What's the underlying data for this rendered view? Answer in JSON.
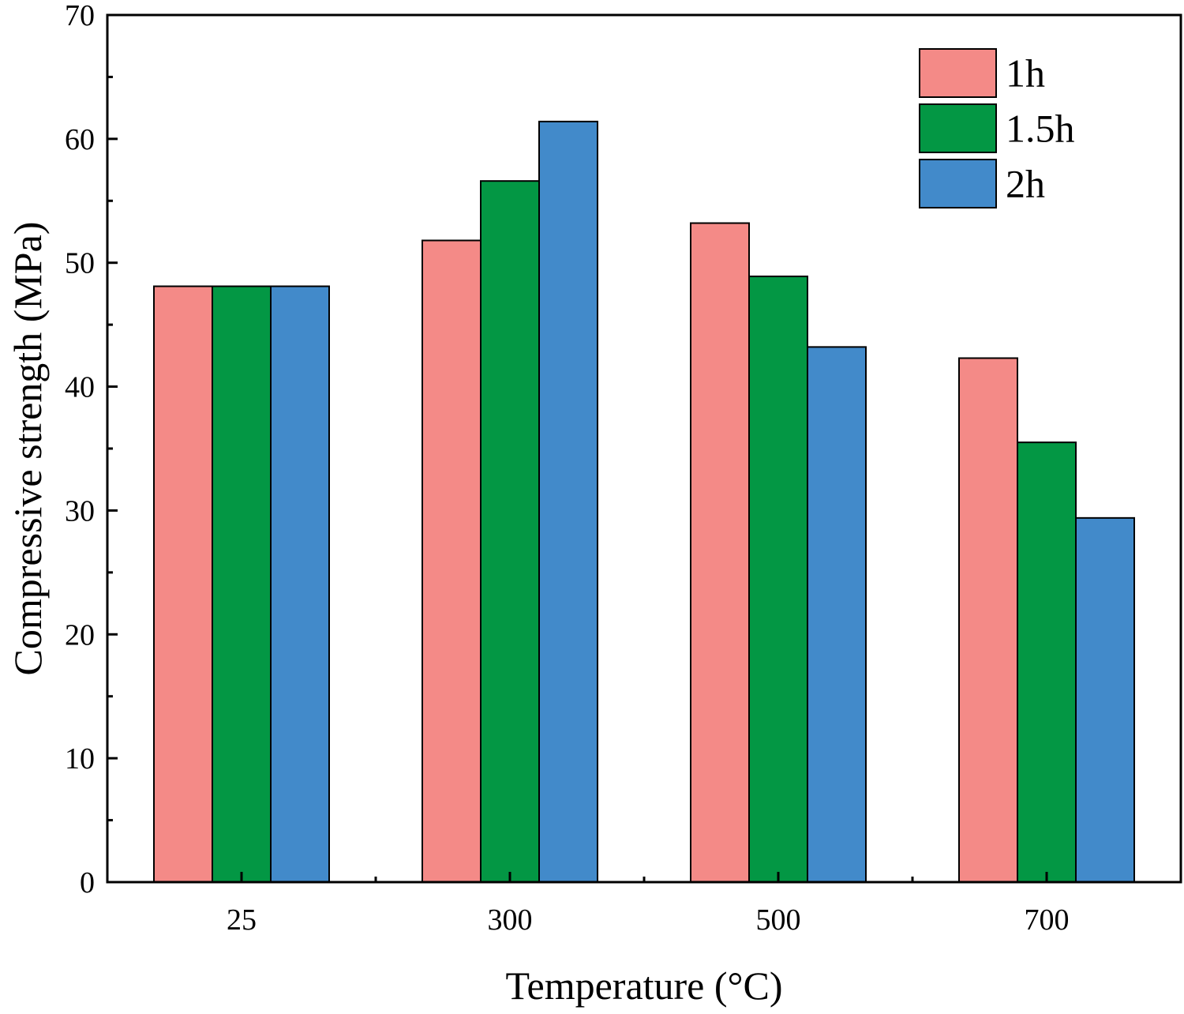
{
  "chart_data": {
    "type": "bar",
    "title": "",
    "xlabel": "Temperature (°C)",
    "ylabel": "Compressive strength (MPa)",
    "categories": [
      "25",
      "300",
      "500",
      "700"
    ],
    "series": [
      {
        "name": "1h",
        "color": "#F48A87",
        "values": [
          48.1,
          51.8,
          53.2,
          42.3
        ]
      },
      {
        "name": "1.5h",
        "color": "#039744",
        "values": [
          48.1,
          56.6,
          48.9,
          35.5
        ]
      },
      {
        "name": "2h",
        "color": "#428ACA",
        "values": [
          48.1,
          61.4,
          43.2,
          29.4
        ]
      }
    ],
    "ylim": [
      0,
      70
    ],
    "yticks": [
      "0",
      "10",
      "20",
      "30",
      "40",
      "50",
      "60",
      "70"
    ],
    "grid": false,
    "legend_position": "top-right"
  }
}
